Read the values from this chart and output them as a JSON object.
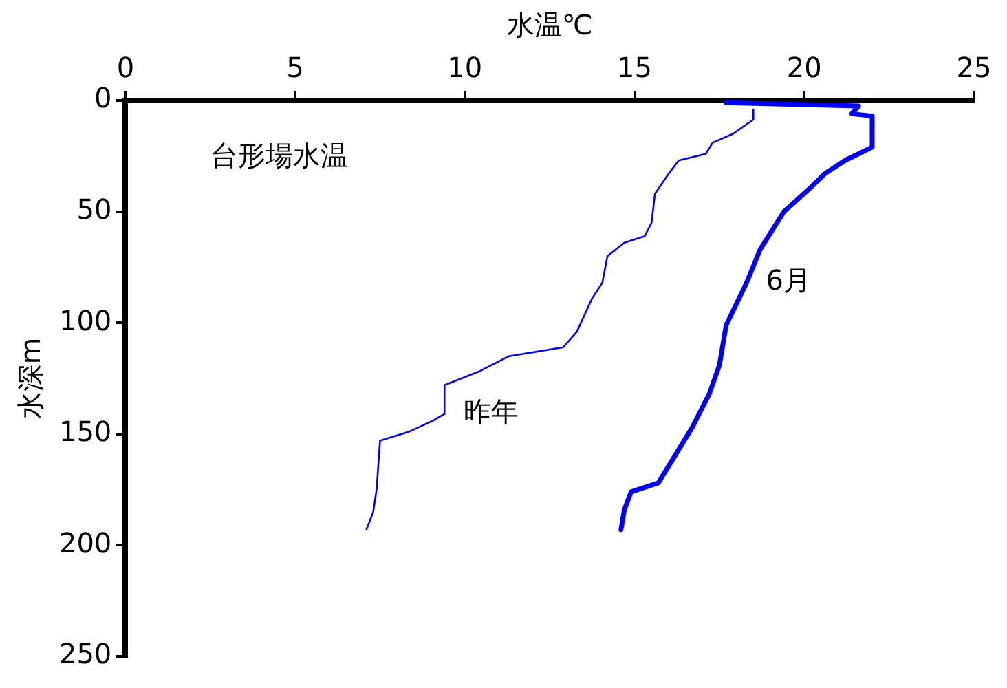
{
  "chart_data": {
    "type": "line",
    "xlabel": "水温℃",
    "ylabel": "水深m",
    "annotations": [
      "台形場水温"
    ],
    "xlim": [
      0,
      25
    ],
    "xticks": [
      0,
      5,
      10,
      15,
      20,
      25
    ],
    "ylim": [
      250,
      0
    ],
    "yticks": [
      0,
      50,
      100,
      150,
      200,
      250
    ],
    "grid": false,
    "legend": false,
    "marker": "none",
    "line_style": "solid",
    "series": [
      {
        "name": "昨年",
        "color": "#0000ff",
        "x": [
          18.5,
          18.5,
          17.9,
          17.3,
          17.1,
          16.3,
          16,
          15.6,
          15.5,
          15.3,
          14.7,
          14.2,
          14.05,
          13.75,
          13.3,
          12.9,
          11.3,
          10.4,
          9.4,
          9.4,
          9.06,
          8.35,
          7.5,
          7.4,
          7.3,
          7.1
        ],
        "values": [
          4,
          8.6,
          15,
          19,
          24,
          27,
          33,
          42,
          55,
          61,
          64,
          70,
          82,
          89,
          104,
          111,
          115,
          122,
          128,
          141,
          144,
          149,
          153,
          175,
          185,
          193
        ]
      },
      {
        "name": "6月",
        "color": "#0000ff",
        "x": [
          17.7,
          21.6,
          21.4,
          22,
          22,
          21.2,
          20.6,
          20.2,
          19.4,
          18.7,
          18.3,
          17.7,
          17.5,
          17.2,
          16.7,
          16.1,
          15.7,
          14.9,
          14.7,
          14.6
        ],
        "values": [
          1,
          2.5,
          6,
          7,
          21,
          27,
          33,
          39,
          50,
          67,
          82,
          101,
          119,
          132,
          147,
          162,
          172,
          176,
          184,
          193
        ]
      }
    ]
  }
}
